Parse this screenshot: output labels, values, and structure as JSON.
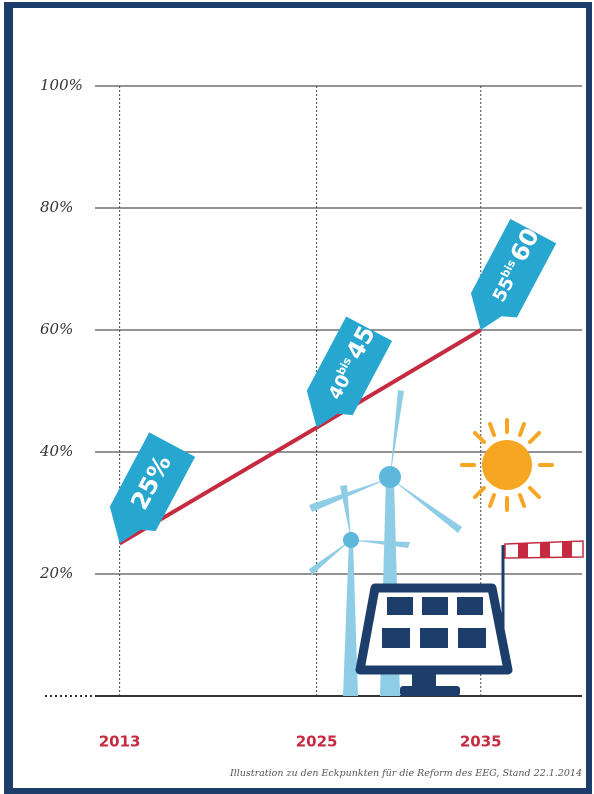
{
  "chart_data": {
    "type": "line",
    "x": [
      2013,
      2025,
      2035
    ],
    "values": [
      25,
      44,
      60
    ],
    "color": "#c62a40",
    "callout_color": "#27a6cf",
    "annotations": [
      {
        "high": "25%"
      },
      {
        "low": "40",
        "sep": "bis",
        "high": "45%"
      },
      {
        "low": "55",
        "sep": "bis",
        "high": "60%"
      }
    ],
    "xlim": [
      2011.5,
      2038
    ],
    "xticks": [
      2013,
      2025,
      2035
    ],
    "ylim": [
      0,
      100
    ],
    "yticks": [
      0,
      {
        "value": 20,
        "label": "20%"
      },
      {
        "value": 40,
        "label": "40%"
      },
      {
        "value": 60,
        "label": "60%"
      },
      {
        "value": 80,
        "label": "80%"
      },
      {
        "value": 100,
        "label": "100%"
      }
    ],
    "grid": true,
    "footnote": "Illustration zu den Eckpunkten für die Reform des EEG, Stand 22.1.2014"
  }
}
